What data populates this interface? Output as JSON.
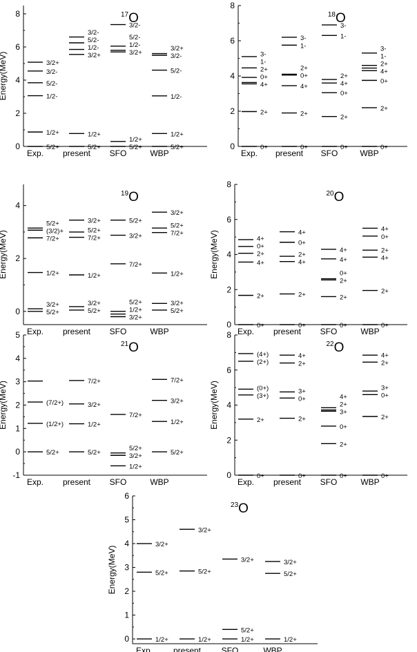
{
  "chart_data": [
    {
      "type": "level-scheme",
      "nucleus": {
        "mass": "17",
        "symbol": "O"
      },
      "ylabel": "Energy(MeV)",
      "ylim": [
        0,
        8.5
      ],
      "yticks": [
        0,
        2,
        4,
        6,
        8
      ],
      "columns": [
        {
          "name": "Exp.",
          "levels": [
            {
              "e": 0,
              "label": "5/2+"
            },
            {
              "e": 0.87,
              "label": "1/2+"
            },
            {
              "e": 3.06,
              "label": "1/2-"
            },
            {
              "e": 3.84,
              "label": "5/2-"
            },
            {
              "e": 4.55,
              "label": "3/2-"
            },
            {
              "e": 5.08,
              "label": "3/2+"
            }
          ]
        },
        {
          "name": "present",
          "levels": [
            {
              "e": 0,
              "label": "5/2+"
            },
            {
              "e": 0.78,
              "label": "1/2+"
            },
            {
              "e": 5.55,
              "label": "3/2+"
            },
            {
              "e": 5.85,
              "label": "1/2-"
            },
            {
              "e": 6.25,
              "label": "5/2-"
            },
            {
              "e": 6.6,
              "label": "3/2-"
            }
          ]
        },
        {
          "name": "SFO",
          "levels": [
            {
              "e": 0,
              "label": "5/2+"
            },
            {
              "e": 0.3,
              "label": "1/2+"
            },
            {
              "e": 5.7,
              "label": "3/2+"
            },
            {
              "e": 5.8,
              "label": "1/2-"
            },
            {
              "e": 6.05,
              "label": "5/2-"
            },
            {
              "e": 7.35,
              "label": "3/2-"
            }
          ]
        },
        {
          "name": "WBP",
          "levels": [
            {
              "e": 0,
              "label": "5/2+"
            },
            {
              "e": 0.78,
              "label": "1/2+"
            },
            {
              "e": 3.05,
              "label": "1/2-"
            },
            {
              "e": 4.6,
              "label": "5/2-"
            },
            {
              "e": 5.5,
              "label": "3/2-"
            },
            {
              "e": 5.6,
              "label": "3/2+"
            }
          ]
        }
      ]
    },
    {
      "type": "level-scheme",
      "nucleus": {
        "mass": "18",
        "symbol": "O"
      },
      "ylabel": "",
      "ylim": [
        0,
        8
      ],
      "yticks": [
        0,
        2,
        4,
        6,
        8
      ],
      "columns": [
        {
          "name": "Exp.",
          "levels": [
            {
              "e": 0,
              "label": "0+"
            },
            {
              "e": 1.98,
              "label": "2+"
            },
            {
              "e": 3.55,
              "label": "4+"
            },
            {
              "e": 3.63,
              "label": "0+"
            },
            {
              "e": 3.92,
              "label": "2+"
            },
            {
              "e": 4.46,
              "label": "1-"
            },
            {
              "e": 5.1,
              "label": "3-"
            }
          ]
        },
        {
          "name": "present",
          "levels": [
            {
              "e": 0,
              "label": "0+"
            },
            {
              "e": 1.9,
              "label": "2+"
            },
            {
              "e": 3.45,
              "label": "4+"
            },
            {
              "e": 4.05,
              "label": "0+"
            },
            {
              "e": 4.1,
              "label": "2+"
            },
            {
              "e": 5.75,
              "label": "1-"
            },
            {
              "e": 6.2,
              "label": "3-"
            }
          ]
        },
        {
          "name": "SFO",
          "levels": [
            {
              "e": 0,
              "label": "0+"
            },
            {
              "e": 1.7,
              "label": "2+"
            },
            {
              "e": 3.05,
              "label": "0+"
            },
            {
              "e": 3.6,
              "label": "4+"
            },
            {
              "e": 3.8,
              "label": "2+"
            },
            {
              "e": 6.3,
              "label": "1-"
            },
            {
              "e": 6.9,
              "label": "3-"
            }
          ]
        },
        {
          "name": "WBP",
          "levels": [
            {
              "e": 0,
              "label": "0+"
            },
            {
              "e": 2.2,
              "label": "2+"
            },
            {
              "e": 3.75,
              "label": "0+"
            },
            {
              "e": 4.3,
              "label": "4+"
            },
            {
              "e": 4.45,
              "label": "2+"
            },
            {
              "e": 4.6,
              "label": "1-"
            },
            {
              "e": 5.3,
              "label": "3-"
            }
          ]
        }
      ]
    },
    {
      "type": "level-scheme",
      "nucleus": {
        "mass": "19",
        "symbol": "O"
      },
      "ylabel": "Energy(MeV)",
      "ylim": [
        -0.5,
        4.8
      ],
      "yticks": [
        0,
        2,
        4
      ],
      "columns": [
        {
          "name": "Exp.",
          "levels": [
            {
              "e": 0,
              "label": "5/2+"
            },
            {
              "e": 0.1,
              "label": "3/2+"
            },
            {
              "e": 1.47,
              "label": "1/2+"
            },
            {
              "e": 2.78,
              "label": "7/2+"
            },
            {
              "e": 3.07,
              "label": "(3/2)+"
            },
            {
              "e": 3.15,
              "label": "5/2+"
            }
          ]
        },
        {
          "name": "present",
          "levels": [
            {
              "e": 0.05,
              "label": "5/2+"
            },
            {
              "e": 0.18,
              "label": "3/2+"
            },
            {
              "e": 1.38,
              "label": "1/2+"
            },
            {
              "e": 2.8,
              "label": "7/2+"
            },
            {
              "e": 3.0,
              "label": "5/2+"
            },
            {
              "e": 3.45,
              "label": "3/2+"
            }
          ]
        },
        {
          "name": "SFO",
          "levels": [
            {
              "e": -0.2,
              "label": "3/2+"
            },
            {
              "e": -0.1,
              "label": "1/2+"
            },
            {
              "e": 0,
              "label": "5/2+"
            },
            {
              "e": 1.8,
              "label": "7/2+"
            },
            {
              "e": 2.88,
              "label": "3/2+"
            },
            {
              "e": 3.45,
              "label": "5/2+"
            }
          ]
        },
        {
          "name": "WBP",
          "levels": [
            {
              "e": 0.05,
              "label": "5/2+"
            },
            {
              "e": 0.3,
              "label": "3/2+"
            },
            {
              "e": 1.45,
              "label": "1/2+"
            },
            {
              "e": 2.98,
              "label": "7/2+"
            },
            {
              "e": 3.15,
              "label": "5/2+"
            },
            {
              "e": 3.75,
              "label": "3/2+"
            }
          ]
        }
      ]
    },
    {
      "type": "level-scheme",
      "nucleus": {
        "mass": "20",
        "symbol": "O"
      },
      "ylabel": "Energy(MeV)",
      "ylim": [
        0,
        8
      ],
      "yticks": [
        0,
        2,
        4,
        6,
        8
      ],
      "columns": [
        {
          "name": "Exp.",
          "levels": [
            {
              "e": 0,
              "label": "0+"
            },
            {
              "e": 1.67,
              "label": "2+"
            },
            {
              "e": 3.57,
              "label": "4+"
            },
            {
              "e": 4.07,
              "label": "2+"
            },
            {
              "e": 4.46,
              "label": "0+"
            },
            {
              "e": 4.85,
              "label": "4+"
            }
          ]
        },
        {
          "name": "present",
          "levels": [
            {
              "e": 0,
              "label": "0+"
            },
            {
              "e": 1.75,
              "label": "2+"
            },
            {
              "e": 3.6,
              "label": "4+"
            },
            {
              "e": 3.9,
              "label": "2+"
            },
            {
              "e": 4.7,
              "label": "0+"
            },
            {
              "e": 5.3,
              "label": "4+"
            }
          ]
        },
        {
          "name": "SFO",
          "levels": [
            {
              "e": 0,
              "label": "0+"
            },
            {
              "e": 1.6,
              "label": "2+"
            },
            {
              "e": 2.55,
              "label": "2+"
            },
            {
              "e": 2.62,
              "label": "0+"
            },
            {
              "e": 3.75,
              "label": "4+"
            },
            {
              "e": 4.3,
              "label": "4+"
            }
          ]
        },
        {
          "name": "WBP",
          "levels": [
            {
              "e": 0,
              "label": "0+"
            },
            {
              "e": 1.95,
              "label": "2+"
            },
            {
              "e": 3.85,
              "label": "4+"
            },
            {
              "e": 4.25,
              "label": "2+"
            },
            {
              "e": 5.05,
              "label": "0+"
            },
            {
              "e": 5.5,
              "label": "4+"
            }
          ]
        }
      ]
    },
    {
      "type": "level-scheme",
      "nucleus": {
        "mass": "21",
        "symbol": "O"
      },
      "ylabel": "Energy(MeV)",
      "ylim": [
        -1,
        5
      ],
      "yticks": [
        -1,
        0,
        1,
        2,
        3,
        4,
        5
      ],
      "columns": [
        {
          "name": "Exp.",
          "levels": [
            {
              "e": 0,
              "label": "5/2+"
            },
            {
              "e": 1.22,
              "label": "(1/2+)"
            },
            {
              "e": 2.13,
              "label": "(7/2+)"
            },
            {
              "e": 3.03,
              "label": ""
            }
          ]
        },
        {
          "name": "present",
          "levels": [
            {
              "e": 0,
              "label": "5/2+"
            },
            {
              "e": 1.2,
              "label": "1/2+"
            },
            {
              "e": 2.05,
              "label": "3/2+"
            },
            {
              "e": 3.05,
              "label": "7/2+"
            }
          ]
        },
        {
          "name": "SFO",
          "levels": [
            {
              "e": -0.6,
              "label": "1/2+"
            },
            {
              "e": -0.15,
              "label": "3/2+"
            },
            {
              "e": -0.05,
              "label": "5/2+"
            },
            {
              "e": 1.6,
              "label": "7/2+"
            }
          ]
        },
        {
          "name": "WBP",
          "levels": [
            {
              "e": 0,
              "label": "5/2+"
            },
            {
              "e": 1.3,
              "label": "1/2+"
            },
            {
              "e": 2.2,
              "label": "3/2+"
            },
            {
              "e": 3.1,
              "label": "7/2+"
            }
          ]
        }
      ]
    },
    {
      "type": "level-scheme",
      "nucleus": {
        "mass": "22",
        "symbol": "O"
      },
      "ylabel": "Energy(MeV)",
      "ylim": [
        0,
        8
      ],
      "yticks": [
        0,
        2,
        4,
        6,
        8
      ],
      "columns": [
        {
          "name": "Exp.",
          "levels": [
            {
              "e": 0,
              "label": "0+"
            },
            {
              "e": 3.2,
              "label": "2+"
            },
            {
              "e": 4.58,
              "label": "(3+)"
            },
            {
              "e": 4.91,
              "label": "(0+)"
            },
            {
              "e": 6.5,
              "label": "(2+)"
            },
            {
              "e": 6.94,
              "label": "(4+)"
            }
          ]
        },
        {
          "name": "present",
          "levels": [
            {
              "e": 0,
              "label": "0+"
            },
            {
              "e": 3.25,
              "label": "2+"
            },
            {
              "e": 4.4,
              "label": "0+"
            },
            {
              "e": 4.75,
              "label": "3+"
            },
            {
              "e": 6.4,
              "label": "2+"
            },
            {
              "e": 6.85,
              "label": "4+"
            }
          ]
        },
        {
          "name": "SFO",
          "levels": [
            {
              "e": 0,
              "label": "0+"
            },
            {
              "e": 1.8,
              "label": "2+"
            },
            {
              "e": 2.8,
              "label": "0+"
            },
            {
              "e": 3.65,
              "label": "3+"
            },
            {
              "e": 3.72,
              "label": "2+"
            },
            {
              "e": 3.85,
              "label": "4+"
            }
          ]
        },
        {
          "name": "WBP",
          "levels": [
            {
              "e": 0,
              "label": "0+"
            },
            {
              "e": 3.35,
              "label": "2+"
            },
            {
              "e": 4.6,
              "label": "0+"
            },
            {
              "e": 4.8,
              "label": "3+"
            },
            {
              "e": 6.45,
              "label": "2+"
            },
            {
              "e": 6.85,
              "label": "4+"
            }
          ]
        }
      ]
    },
    {
      "type": "level-scheme",
      "nucleus": {
        "mass": "23",
        "symbol": "O"
      },
      "ylabel": "Energy(MeV)",
      "ylim": [
        -0.2,
        6
      ],
      "yticks": [
        0,
        1,
        2,
        3,
        4,
        5,
        6
      ],
      "columns": [
        {
          "name": "Exp.",
          "levels": [
            {
              "e": 0,
              "label": "1/2+"
            },
            {
              "e": 2.8,
              "label": "5/2+"
            },
            {
              "e": 4.0,
              "label": "3/2+"
            }
          ]
        },
        {
          "name": "present",
          "levels": [
            {
              "e": 0,
              "label": "1/2+"
            },
            {
              "e": 2.85,
              "label": "5/2+"
            },
            {
              "e": 4.6,
              "label": "3/2+"
            }
          ]
        },
        {
          "name": "SFO",
          "levels": [
            {
              "e": 0,
              "label": "1/2+"
            },
            {
              "e": 0.4,
              "label": "5/2+"
            },
            {
              "e": 3.35,
              "label": "3/2+"
            }
          ]
        },
        {
          "name": "WBP",
          "levels": [
            {
              "e": 0,
              "label": "1/2+"
            },
            {
              "e": 2.75,
              "label": "5/2+"
            },
            {
              "e": 3.25,
              "label": "3/2+"
            }
          ]
        }
      ]
    }
  ]
}
